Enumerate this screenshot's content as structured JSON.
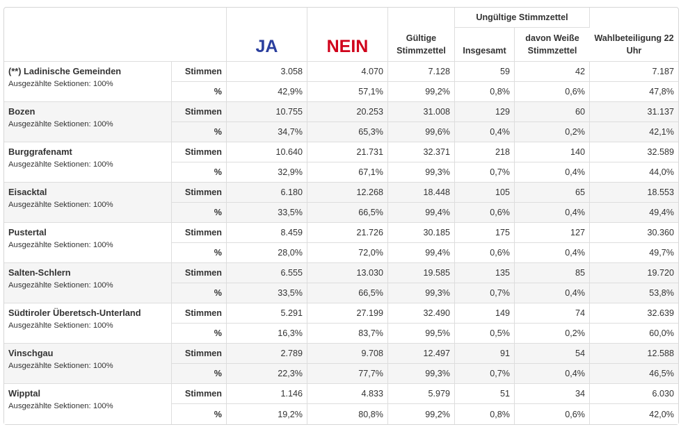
{
  "headers": {
    "ja": "JA",
    "nein": "NEIN",
    "gueltige": "Gültige Stimmzettel",
    "ungueltige_group": "Ungültige Stimmzettel",
    "insgesamt": "Insgesamt",
    "davon_weisse": "davon Weiße Stimmzettel",
    "wahlbeteiligung": "Wahlbeteiligung 22 Uhr"
  },
  "labels": {
    "stimmen": "Stimmen",
    "percent": "%"
  },
  "colors": {
    "ja": "#2b3f9e",
    "nein": "#d0021b"
  },
  "regions": [
    {
      "name": "(**) Ladinische Gemeinden",
      "sub": "Ausgezählte Sektionen: 100%",
      "stimmen": [
        "3.058",
        "4.070",
        "7.128",
        "59",
        "42",
        "7.187"
      ],
      "percent": [
        "42,9%",
        "57,1%",
        "99,2%",
        "0,8%",
        "0,6%",
        "47,8%"
      ]
    },
    {
      "name": "Bozen",
      "sub": "Ausgezählte Sektionen: 100%",
      "stimmen": [
        "10.755",
        "20.253",
        "31.008",
        "129",
        "60",
        "31.137"
      ],
      "percent": [
        "34,7%",
        "65,3%",
        "99,6%",
        "0,4%",
        "0,2%",
        "42,1%"
      ]
    },
    {
      "name": "Burggrafenamt",
      "sub": "Ausgezählte Sektionen: 100%",
      "stimmen": [
        "10.640",
        "21.731",
        "32.371",
        "218",
        "140",
        "32.589"
      ],
      "percent": [
        "32,9%",
        "67,1%",
        "99,3%",
        "0,7%",
        "0,4%",
        "44,0%"
      ]
    },
    {
      "name": "Eisacktal",
      "sub": "Ausgezählte Sektionen: 100%",
      "stimmen": [
        "6.180",
        "12.268",
        "18.448",
        "105",
        "65",
        "18.553"
      ],
      "percent": [
        "33,5%",
        "66,5%",
        "99,4%",
        "0,6%",
        "0,4%",
        "49,4%"
      ]
    },
    {
      "name": "Pustertal",
      "sub": "Ausgezählte Sektionen: 100%",
      "stimmen": [
        "8.459",
        "21.726",
        "30.185",
        "175",
        "127",
        "30.360"
      ],
      "percent": [
        "28,0%",
        "72,0%",
        "99,4%",
        "0,6%",
        "0,4%",
        "49,7%"
      ]
    },
    {
      "name": "Salten-Schlern",
      "sub": "Ausgezählte Sektionen: 100%",
      "stimmen": [
        "6.555",
        "13.030",
        "19.585",
        "135",
        "85",
        "19.720"
      ],
      "percent": [
        "33,5%",
        "66,5%",
        "99,3%",
        "0,7%",
        "0,4%",
        "53,8%"
      ]
    },
    {
      "name": "Südtiroler Überetsch-Unterland",
      "sub": "Ausgezählte Sektionen: 100%",
      "stimmen": [
        "5.291",
        "27.199",
        "32.490",
        "149",
        "74",
        "32.639"
      ],
      "percent": [
        "16,3%",
        "83,7%",
        "99,5%",
        "0,5%",
        "0,2%",
        "60,0%"
      ]
    },
    {
      "name": "Vinschgau",
      "sub": "Ausgezählte Sektionen: 100%",
      "stimmen": [
        "2.789",
        "9.708",
        "12.497",
        "91",
        "54",
        "12.588"
      ],
      "percent": [
        "22,3%",
        "77,7%",
        "99,3%",
        "0,7%",
        "0,4%",
        "46,5%"
      ]
    },
    {
      "name": "Wipptal",
      "sub": "Ausgezählte Sektionen: 100%",
      "stimmen": [
        "1.146",
        "4.833",
        "5.979",
        "51",
        "34",
        "6.030"
      ],
      "percent": [
        "19,2%",
        "80,8%",
        "99,2%",
        "0,8%",
        "0,6%",
        "42,0%"
      ]
    }
  ]
}
